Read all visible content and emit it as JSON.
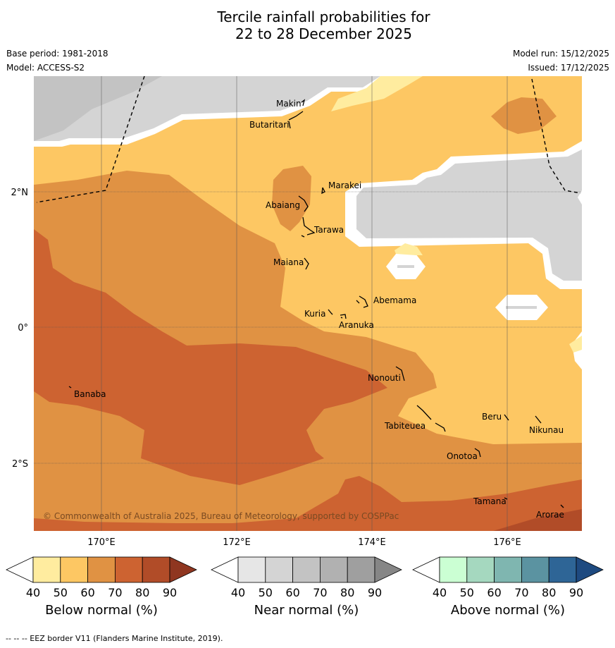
{
  "title": {
    "line1": "Tercile rainfall probabilities for",
    "line2": "22 to 28 December 2025"
  },
  "meta": {
    "base_period": "Base period: 1981-2018",
    "model": "Model: ACCESS-S2",
    "model_run": "Model run: 15/12/2025",
    "issued": "Issued: 17/12/2025"
  },
  "map": {
    "lat_labels": [
      "2°N",
      "0°",
      "2°S"
    ],
    "lon_labels": [
      "170°E",
      "172°E",
      "174°E",
      "176°E"
    ],
    "copyright": "© Commonwealth of Australia 2025, Bureau of Meteorology, supported by COSPPac",
    "places": [
      "Makin",
      "Butaritari",
      "Marakei",
      "Abaiang",
      "Tarawa",
      "Maiana",
      "Abemama",
      "Kuria",
      "Aranuka",
      "Nonouti",
      "Banaba",
      "Tabiteuea",
      "Beru",
      "Nikunau",
      "Onotoa",
      "Tamana",
      "Arorae"
    ]
  },
  "colorbars": [
    {
      "label": "Below normal (%)",
      "ticks": [
        "40",
        "50",
        "60",
        "70",
        "80",
        "90"
      ],
      "colors": [
        "#ffffff",
        "#ffec9f",
        "#fdc763",
        "#e09243",
        "#cd6331",
        "#b14c28",
        "#8f3620"
      ]
    },
    {
      "label": "Near normal (%)",
      "ticks": [
        "40",
        "50",
        "60",
        "70",
        "80",
        "90"
      ],
      "colors": [
        "#ffffff",
        "#e6e6e6",
        "#d4d4d4",
        "#c3c3c3",
        "#b1b1b1",
        "#9f9f9f",
        "#868686"
      ]
    },
    {
      "label": "Above normal (%)",
      "ticks": [
        "40",
        "50",
        "60",
        "70",
        "80",
        "90"
      ],
      "colors": [
        "#ffffff",
        "#cbffd3",
        "#a5d8bf",
        "#7fb6b0",
        "#5b93a1",
        "#2e6596",
        "#1e4a80"
      ]
    }
  ],
  "footnote": "--  --  -- EEZ border V11 (Flanders Marine Institute, 2019).",
  "colors": {
    "below_60": "#fdc763",
    "below_70": "#e09243",
    "below_80": "#cd6331",
    "below_90": "#b14c28",
    "near_50": "#e6e6e6",
    "near_60": "#d4d4d4",
    "near_70": "#c3c3c3",
    "below_50": "#ffec9f"
  }
}
